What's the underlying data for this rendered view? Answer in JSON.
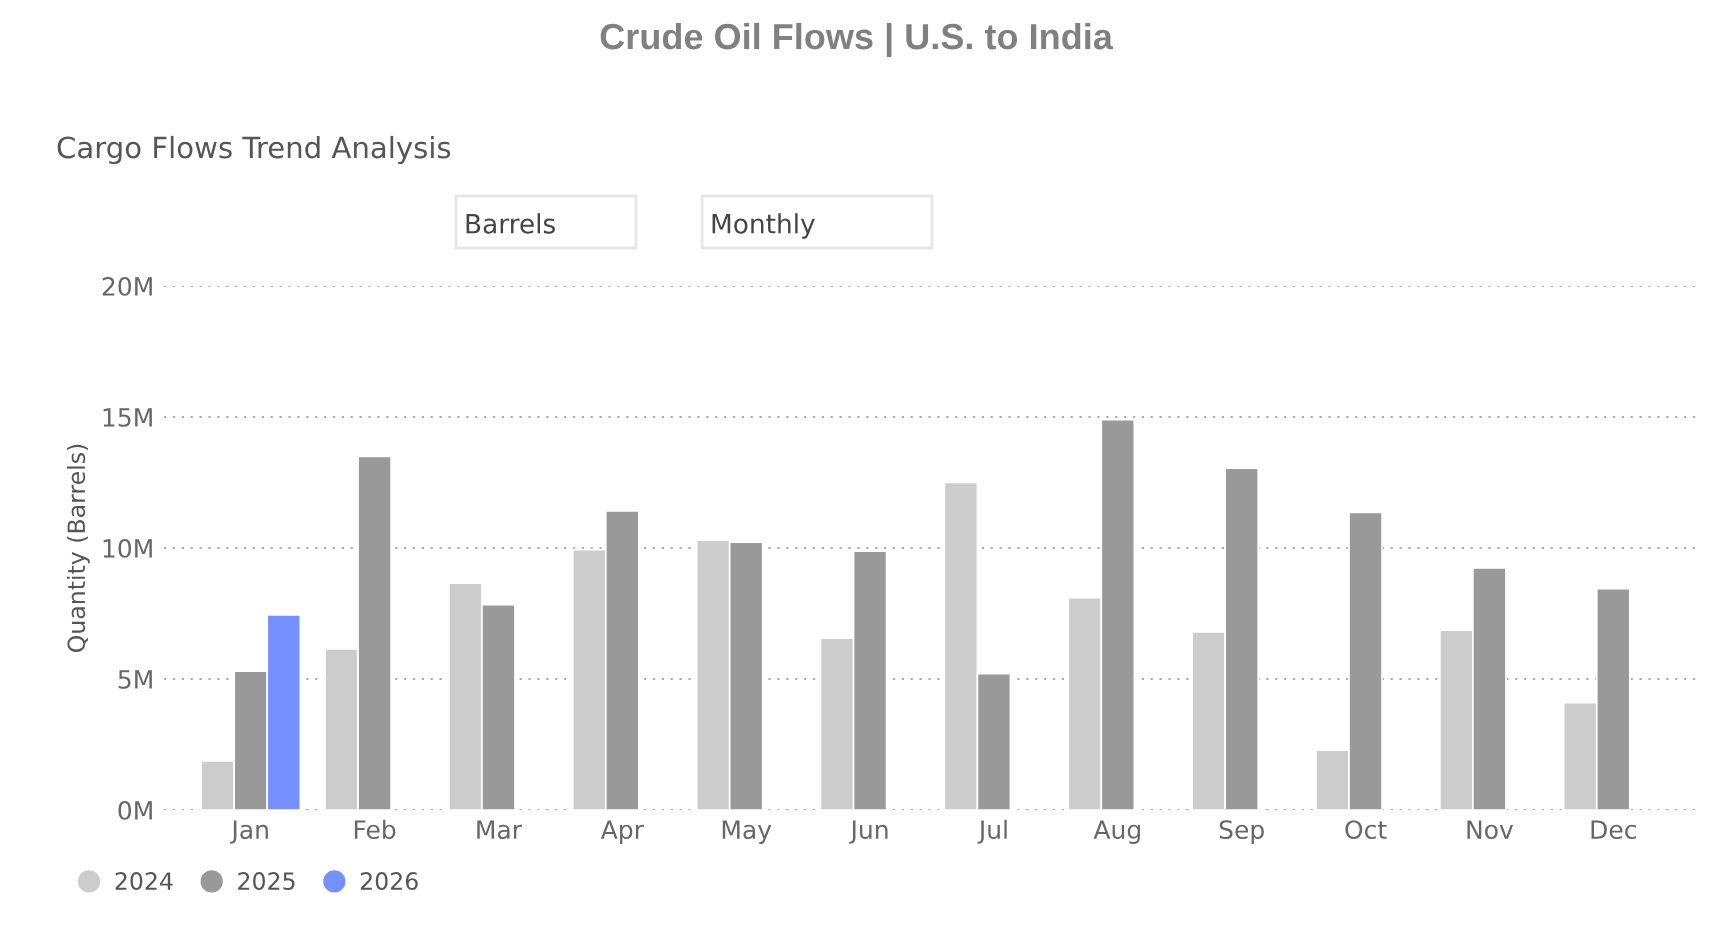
{
  "chart_data": {
    "type": "bar",
    "title": "Crude Oil Flows | U.S. to India",
    "subtitle": "Cargo Flows Trend Analysis",
    "annotations": [
      "Barrels",
      "Monthly"
    ],
    "ylabel": "Quantity (Barrels)",
    "categories": [
      "Jan",
      "Feb",
      "Mar",
      "Apr",
      "May",
      "Jun",
      "Jul",
      "Aug",
      "Sep",
      "Oct",
      "Nov",
      "Dec"
    ],
    "series": [
      {
        "name": "2024",
        "color": "#cccccc",
        "values": [
          1.87,
          6.15,
          8.66,
          9.94,
          10.3,
          6.56,
          12.5,
          8.1,
          6.8,
          2.28,
          6.86,
          4.1
        ]
      },
      {
        "name": "2025",
        "color": "#999999",
        "values": [
          5.3,
          13.5,
          7.84,
          11.42,
          10.22,
          9.88,
          5.2,
          14.9,
          13.05,
          11.36,
          9.24,
          8.45
        ]
      },
      {
        "name": "2026",
        "color": "#7590ff",
        "values": [
          7.45,
          null,
          null,
          null,
          null,
          null,
          null,
          null,
          null,
          null,
          null,
          null
        ]
      }
    ],
    "ylim": [
      0,
      20
    ],
    "yticks": [
      {
        "value": 0,
        "label": "0M"
      },
      {
        "value": 5,
        "label": "5M"
      },
      {
        "value": 10,
        "label": "10M"
      },
      {
        "value": 15,
        "label": "15M"
      },
      {
        "value": 20,
        "label": "20M"
      }
    ],
    "grid": "y",
    "legend": "bottom left",
    "marker": "circle"
  }
}
